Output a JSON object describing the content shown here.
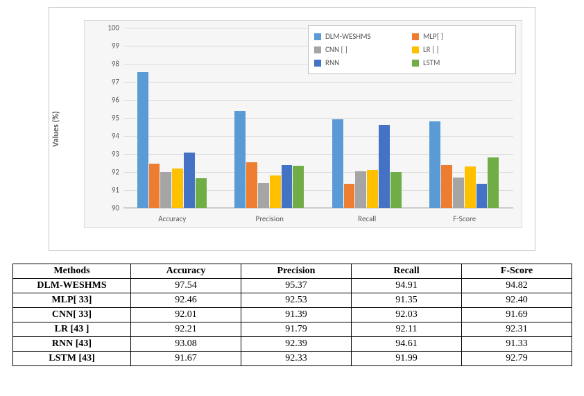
{
  "chart": {
    "type": "bar",
    "categories": [
      "Accuracy",
      "Precision",
      "Recall",
      "F-Score"
    ],
    "ylabel": "Values (%)",
    "ylim": [
      90,
      100
    ],
    "ytick_step": 1,
    "background_color": "#f6f6f6",
    "grid_color": "#d9d9d9",
    "outer_border_color": "#c5c5c5",
    "label_fontsize": 11,
    "ylabel_fontsize": 12,
    "bar_rel_width": 0.12,
    "group_gap_rel": 0.14,
    "series": [
      {
        "name": "DLM-WESHMS",
        "legend_label": "DLM-WESHMS",
        "color": "#5b9bd5",
        "values": [
          97.54,
          95.37,
          94.91,
          94.82
        ]
      },
      {
        "name": "MLP",
        "legend_label": "MLP[ ]",
        "color": "#ed7d31",
        "values": [
          92.46,
          92.53,
          91.35,
          92.4
        ]
      },
      {
        "name": "CNN",
        "legend_label": "CNN [ ]",
        "color": "#a5a5a5",
        "values": [
          92.01,
          91.39,
          92.03,
          91.69
        ]
      },
      {
        "name": "LR",
        "legend_label": "LR [ ]",
        "color": "#ffc000",
        "values": [
          92.21,
          91.79,
          92.11,
          92.31
        ]
      },
      {
        "name": "RNN",
        "legend_label": "RNN",
        "color": "#4472c4",
        "values": [
          93.08,
          92.39,
          94.61,
          91.33
        ]
      },
      {
        "name": "LSTM",
        "legend_label": "LSTM",
        "color": "#70ad47",
        "values": [
          91.67,
          92.33,
          91.99,
          92.79
        ]
      }
    ],
    "visible_cap_value": 90.1
  },
  "table": {
    "columns": [
      "Methods",
      "Accuracy",
      "Precision",
      "Recall",
      "F-Score"
    ],
    "rows": [
      [
        "DLM-WESHMS",
        "97.54",
        "95.37",
        "94.91",
        "94.82"
      ],
      [
        "MLP[ 33]",
        "92.46",
        "92.53",
        "91.35",
        "92.40"
      ],
      [
        "CNN[ 33]",
        "92.01",
        "91.39",
        "92.03",
        "91.69"
      ],
      [
        "LR [43 ]",
        "92.21",
        "91.79",
        "92.11",
        "92.31"
      ],
      [
        "RNN [43]",
        "93.08",
        "92.39",
        "94.61",
        "91.33"
      ],
      [
        "LSTM [43]",
        "91.67",
        "92.33",
        "91.99",
        "92.79"
      ]
    ]
  }
}
